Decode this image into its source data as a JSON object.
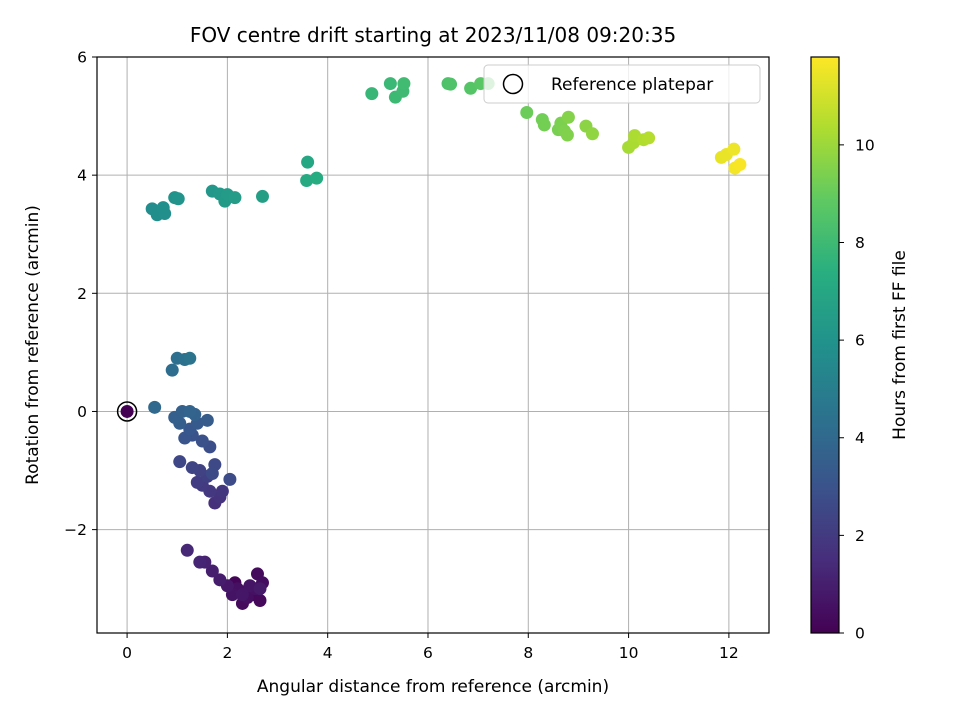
{
  "chart_data": {
    "type": "scatter",
    "title": "FOV centre drift starting at 2023/11/08 09:20:35",
    "xlabel": "Angular distance from reference (arcmin)",
    "ylabel": "Rotation from reference (arcmin)",
    "xlim": [
      -0.6,
      12.8
    ],
    "ylim": [
      -3.75,
      6.0
    ],
    "x_ticks": [
      0,
      2,
      4,
      6,
      8,
      10,
      12
    ],
    "x_tick_labels": [
      "0",
      "2",
      "4",
      "6",
      "8",
      "10",
      "12"
    ],
    "y_ticks": [
      -2,
      0,
      2,
      4,
      6
    ],
    "y_tick_labels": [
      "−2",
      "0",
      "2",
      "4",
      "6"
    ],
    "grid": true,
    "colorbar": {
      "label": "Hours from first FF file",
      "range": [
        0,
        11.8
      ],
      "ticks": [
        0,
        2,
        4,
        6,
        8,
        10
      ],
      "tick_labels": [
        "0",
        "2",
        "4",
        "6",
        "8",
        "10"
      ],
      "colormap": "viridis"
    },
    "legend": {
      "label": "Reference platepar",
      "position": "top-right"
    },
    "reference_point": {
      "x": 0,
      "y": 0,
      "c": 0
    },
    "points": [
      {
        "x": 2.15,
        "y": -2.9,
        "c": 0.1
      },
      {
        "x": 2.35,
        "y": -3.05,
        "c": 0.15
      },
      {
        "x": 2.5,
        "y": -3.1,
        "c": 0.2
      },
      {
        "x": 2.65,
        "y": -3.2,
        "c": 0.25
      },
      {
        "x": 2.3,
        "y": -3.25,
        "c": 0.3
      },
      {
        "x": 2.6,
        "y": -2.75,
        "c": 0.35
      },
      {
        "x": 2.7,
        "y": -2.9,
        "c": 0.4
      },
      {
        "x": 2.4,
        "y": -3.15,
        "c": 0.45
      },
      {
        "x": 2.2,
        "y": -3.0,
        "c": 0.5
      },
      {
        "x": 2.55,
        "y": -3.0,
        "c": 0.55
      },
      {
        "x": 2.1,
        "y": -3.1,
        "c": 0.6
      },
      {
        "x": 2.45,
        "y": -2.95,
        "c": 0.65
      },
      {
        "x": 2.3,
        "y": -3.1,
        "c": 0.7
      },
      {
        "x": 2.0,
        "y": -2.95,
        "c": 0.75
      },
      {
        "x": 2.65,
        "y": -3.0,
        "c": 0.8
      },
      {
        "x": 1.85,
        "y": -2.85,
        "c": 0.9
      },
      {
        "x": 1.7,
        "y": -2.7,
        "c": 1.0
      },
      {
        "x": 1.55,
        "y": -2.55,
        "c": 1.1
      },
      {
        "x": 1.45,
        "y": -2.55,
        "c": 1.2
      },
      {
        "x": 1.2,
        "y": -2.35,
        "c": 1.3
      },
      {
        "x": 1.75,
        "y": -1.55,
        "c": 1.6
      },
      {
        "x": 1.85,
        "y": -1.45,
        "c": 1.7
      },
      {
        "x": 1.9,
        "y": -1.35,
        "c": 1.8
      },
      {
        "x": 1.65,
        "y": -1.35,
        "c": 1.9
      },
      {
        "x": 1.5,
        "y": -1.25,
        "c": 2.0
      },
      {
        "x": 1.4,
        "y": -1.2,
        "c": 2.1
      },
      {
        "x": 1.6,
        "y": -1.1,
        "c": 2.2
      },
      {
        "x": 1.45,
        "y": -1.0,
        "c": 2.3
      },
      {
        "x": 1.3,
        "y": -0.95,
        "c": 2.4
      },
      {
        "x": 1.05,
        "y": -0.85,
        "c": 2.5
      },
      {
        "x": 1.75,
        "y": -0.9,
        "c": 2.6
      },
      {
        "x": 1.7,
        "y": -1.05,
        "c": 2.65
      },
      {
        "x": 2.05,
        "y": -1.15,
        "c": 2.7
      },
      {
        "x": 1.65,
        "y": -0.6,
        "c": 2.8
      },
      {
        "x": 1.5,
        "y": -0.5,
        "c": 2.9
      },
      {
        "x": 1.3,
        "y": -0.4,
        "c": 3.0
      },
      {
        "x": 1.15,
        "y": -0.45,
        "c": 3.1
      },
      {
        "x": 1.25,
        "y": -0.3,
        "c": 3.2
      },
      {
        "x": 1.4,
        "y": -0.2,
        "c": 3.3
      },
      {
        "x": 1.6,
        "y": -0.15,
        "c": 3.4
      },
      {
        "x": 1.05,
        "y": -0.2,
        "c": 3.5
      },
      {
        "x": 0.95,
        "y": -0.1,
        "c": 3.55
      },
      {
        "x": 1.1,
        "y": 0.0,
        "c": 3.6
      },
      {
        "x": 1.35,
        "y": -0.05,
        "c": 3.7
      },
      {
        "x": 1.25,
        "y": 0.0,
        "c": 3.8
      },
      {
        "x": 0.55,
        "y": 0.07,
        "c": 4.0
      },
      {
        "x": 0.9,
        "y": 0.7,
        "c": 4.2
      },
      {
        "x": 1.0,
        "y": 0.9,
        "c": 4.3
      },
      {
        "x": 1.15,
        "y": 0.88,
        "c": 4.4
      },
      {
        "x": 1.25,
        "y": 0.9,
        "c": 4.45
      },
      {
        "x": 0.5,
        "y": 3.43,
        "c": 5.7
      },
      {
        "x": 0.6,
        "y": 3.33,
        "c": 5.75
      },
      {
        "x": 0.75,
        "y": 3.35,
        "c": 5.8
      },
      {
        "x": 0.72,
        "y": 3.45,
        "c": 5.85
      },
      {
        "x": 0.95,
        "y": 3.62,
        "c": 6.0
      },
      {
        "x": 1.02,
        "y": 3.6,
        "c": 6.05
      },
      {
        "x": 1.7,
        "y": 3.73,
        "c": 6.2
      },
      {
        "x": 1.85,
        "y": 3.68,
        "c": 6.3
      },
      {
        "x": 1.95,
        "y": 3.56,
        "c": 6.35
      },
      {
        "x": 2.0,
        "y": 3.67,
        "c": 6.4
      },
      {
        "x": 2.15,
        "y": 3.62,
        "c": 6.45
      },
      {
        "x": 2.7,
        "y": 3.64,
        "c": 6.6
      },
      {
        "x": 3.6,
        "y": 4.22,
        "c": 7.0
      },
      {
        "x": 3.58,
        "y": 3.91,
        "c": 7.1
      },
      {
        "x": 3.78,
        "y": 3.95,
        "c": 7.2
      },
      {
        "x": 4.88,
        "y": 5.38,
        "c": 7.8
      },
      {
        "x": 5.25,
        "y": 5.55,
        "c": 7.9
      },
      {
        "x": 5.35,
        "y": 5.32,
        "c": 7.95
      },
      {
        "x": 5.5,
        "y": 5.42,
        "c": 8.0
      },
      {
        "x": 5.52,
        "y": 5.55,
        "c": 8.05
      },
      {
        "x": 6.4,
        "y": 5.55,
        "c": 8.4
      },
      {
        "x": 6.45,
        "y": 5.54,
        "c": 8.45
      },
      {
        "x": 6.85,
        "y": 5.47,
        "c": 8.6
      },
      {
        "x": 7.05,
        "y": 5.55,
        "c": 8.7
      },
      {
        "x": 7.2,
        "y": 5.55,
        "c": 8.75
      },
      {
        "x": 7.97,
        "y": 5.06,
        "c": 9.1
      },
      {
        "x": 8.28,
        "y": 4.94,
        "c": 9.2
      },
      {
        "x": 8.32,
        "y": 4.85,
        "c": 9.25
      },
      {
        "x": 8.6,
        "y": 4.77,
        "c": 9.35
      },
      {
        "x": 8.65,
        "y": 4.88,
        "c": 9.4
      },
      {
        "x": 8.72,
        "y": 4.75,
        "c": 9.45
      },
      {
        "x": 8.78,
        "y": 4.68,
        "c": 9.5
      },
      {
        "x": 8.8,
        "y": 4.98,
        "c": 9.55
      },
      {
        "x": 9.15,
        "y": 4.83,
        "c": 9.7
      },
      {
        "x": 9.28,
        "y": 4.7,
        "c": 9.8
      },
      {
        "x": 10.0,
        "y": 4.47,
        "c": 10.2
      },
      {
        "x": 10.1,
        "y": 4.55,
        "c": 10.25
      },
      {
        "x": 10.12,
        "y": 4.67,
        "c": 10.3
      },
      {
        "x": 10.3,
        "y": 4.6,
        "c": 10.4
      },
      {
        "x": 10.4,
        "y": 4.63,
        "c": 10.45
      },
      {
        "x": 11.85,
        "y": 4.3,
        "c": 11.4
      },
      {
        "x": 11.95,
        "y": 4.35,
        "c": 11.45
      },
      {
        "x": 12.1,
        "y": 4.44,
        "c": 11.5
      },
      {
        "x": 12.12,
        "y": 4.12,
        "c": 11.6
      },
      {
        "x": 12.22,
        "y": 4.18,
        "c": 11.7
      }
    ]
  }
}
